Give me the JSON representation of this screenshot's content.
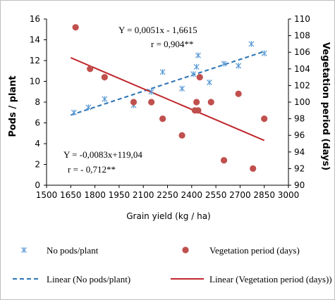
{
  "chart_data": {
    "type": "scatter",
    "xlabel": "Grain yield (kg / ha)",
    "ylabel_left": "Pods / plant",
    "ylabel_right": "Vegetation period (days)",
    "xlim": [
      1500,
      3000
    ],
    "x_ticks": [
      1500,
      1650,
      1800,
      1950,
      2100,
      2250,
      2400,
      2550,
      2700,
      2850,
      3000
    ],
    "ylim_left": [
      0,
      16
    ],
    "y_ticks_left": [
      0,
      2,
      4,
      6,
      8,
      10,
      12,
      14,
      16
    ],
    "ylim_right": [
      90,
      110
    ],
    "y_ticks_right": [
      90,
      92,
      94,
      96,
      98,
      100,
      102,
      104,
      106,
      108,
      110
    ],
    "grid": false,
    "series": [
      {
        "name": "No pods/plant",
        "axis": "left",
        "marker": "asterisk",
        "color": "#5b9bd5",
        "points": [
          [
            1670,
            7.0
          ],
          [
            1760,
            7.5
          ],
          [
            1860,
            8.3
          ],
          [
            2040,
            7.7
          ],
          [
            2150,
            9.0
          ],
          [
            2220,
            10.9
          ],
          [
            2340,
            9.3
          ],
          [
            2410,
            10.7
          ],
          [
            2430,
            11.4
          ],
          [
            2440,
            12.5
          ],
          [
            2510,
            9.9
          ],
          [
            2600,
            11.7
          ],
          [
            2690,
            11.5
          ],
          [
            2770,
            13.6
          ],
          [
            2850,
            12.7
          ]
        ]
      },
      {
        "name": "Vegetation period (days)",
        "axis": "right",
        "marker": "circle",
        "color": "#c0504d",
        "points": [
          [
            1680,
            109
          ],
          [
            1770,
            104
          ],
          [
            1860,
            103
          ],
          [
            2040,
            100
          ],
          [
            2150,
            100
          ],
          [
            2220,
            98
          ],
          [
            2340,
            96
          ],
          [
            2420,
            99
          ],
          [
            2430,
            100
          ],
          [
            2440,
            99
          ],
          [
            2450,
            103
          ],
          [
            2520,
            100
          ],
          [
            2600,
            93
          ],
          [
            2690,
            101
          ],
          [
            2780,
            92
          ],
          [
            2850,
            98
          ]
        ]
      }
    ],
    "trendlines": [
      {
        "name": "Linear (No pods/plant)",
        "axis": "left",
        "style": "dashed",
        "color": "#2e75b6",
        "x_range": [
          1650,
          2850
        ],
        "slope": 0.0051,
        "intercept": -1.6615,
        "equation": "Y = 0,0051x - 1,6615",
        "r": "r = 0,904**"
      },
      {
        "name": "Linear (Vegetation period (days))",
        "axis": "right",
        "style": "solid",
        "color": "#c0282d",
        "x_range": [
          1650,
          2850
        ],
        "slope": -0.0083,
        "intercept": 119.04,
        "equation": "Y = -0,0083x+119,04",
        "r": "r = - 0,712**"
      }
    ]
  }
}
